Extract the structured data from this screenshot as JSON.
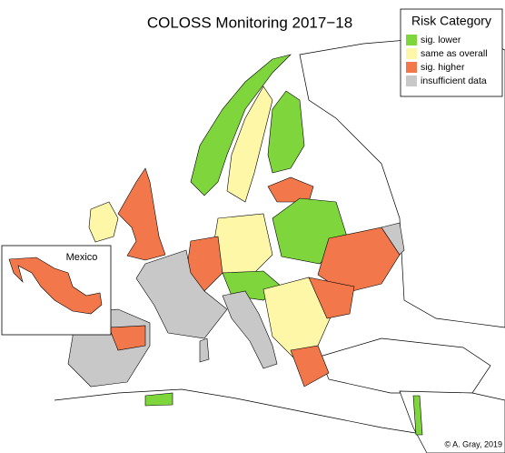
{
  "map": {
    "title": "COLOSS Monitoring 2017−18",
    "legend": {
      "title": "Risk Category",
      "items": [
        {
          "label": "sig. lower",
          "color": "#7ed63c"
        },
        {
          "label": "same as overall",
          "color": "#fff7a8"
        },
        {
          "label": "sig. higher",
          "color": "#f2784b"
        },
        {
          "label": "insufficient data",
          "color": "#c8c8c8"
        }
      ]
    },
    "inset_label": "Mexico",
    "credit": "© A. Gray, 2019"
  }
}
